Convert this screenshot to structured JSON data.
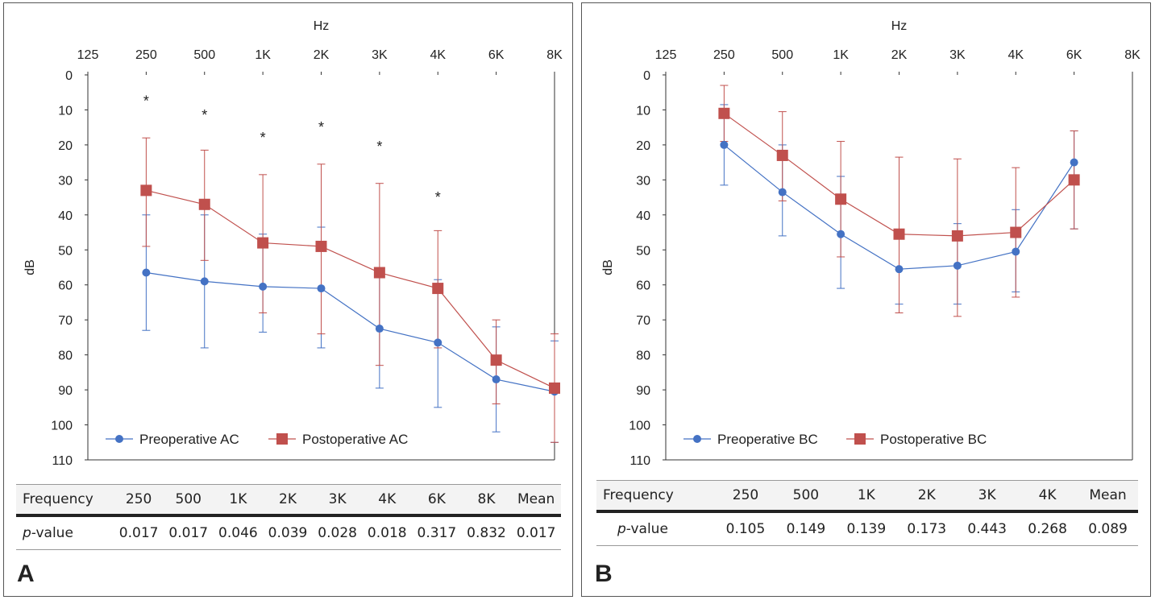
{
  "chart_data": [
    {
      "panel": "A",
      "type": "line",
      "title": "",
      "xlabel": "Hz",
      "ylabel": "dB",
      "x_ticks": [
        "125",
        "250",
        "500",
        "1K",
        "2K",
        "3K",
        "4K",
        "6K",
        "8K"
      ],
      "ylim": [
        0,
        110
      ],
      "y_ticks": [
        0,
        10,
        20,
        30,
        40,
        50,
        60,
        70,
        80,
        90,
        100,
        110
      ],
      "y_inverted": true,
      "x_positions": [
        "250",
        "500",
        "1K",
        "2K",
        "3K",
        "4K",
        "6K",
        "8K"
      ],
      "series": [
        {
          "name": "Preoperative AC",
          "color": "#4472c4",
          "marker": "circle",
          "values": [
            56.5,
            59,
            60.5,
            61,
            72.5,
            76.5,
            87,
            90.5
          ],
          "err_low": [
            40,
            40,
            45.5,
            43.5,
            56,
            58.5,
            72,
            76
          ],
          "err_high": [
            73,
            78,
            73.5,
            78,
            89.5,
            95,
            102,
            105
          ]
        },
        {
          "name": "Postoperative AC",
          "color": "#c0504d",
          "marker": "square",
          "values": [
            33,
            37,
            48,
            49,
            56.5,
            61,
            81.5,
            89.5
          ],
          "err_low": [
            18,
            21.5,
            28.5,
            25.5,
            31,
            44.5,
            70,
            74
          ],
          "err_high": [
            49,
            53,
            68,
            74,
            83,
            78,
            94,
            105
          ]
        }
      ],
      "annotations": [
        {
          "x": "250",
          "y": 7,
          "text": "*"
        },
        {
          "x": "500",
          "y": 11,
          "text": "*"
        },
        {
          "x": "1K",
          "y": 17.5,
          "text": "*"
        },
        {
          "x": "2K",
          "y": 14.5,
          "text": "*"
        },
        {
          "x": "3K",
          "y": 20,
          "text": "*"
        },
        {
          "x": "4K",
          "y": 34.5,
          "text": "*"
        }
      ],
      "legend": "bottom-left"
    },
    {
      "panel": "B",
      "type": "line",
      "title": "",
      "xlabel": "Hz",
      "ylabel": "dB",
      "x_ticks": [
        "125",
        "250",
        "500",
        "1K",
        "2K",
        "3K",
        "4K",
        "6K",
        "8K"
      ],
      "ylim": [
        0,
        110
      ],
      "y_ticks": [
        0,
        10,
        20,
        30,
        40,
        50,
        60,
        70,
        80,
        90,
        100,
        110
      ],
      "y_inverted": true,
      "x_positions": [
        "250",
        "500",
        "1K",
        "2K",
        "3K",
        "4K",
        "6K"
      ],
      "series": [
        {
          "name": "Preoperative BC",
          "color": "#4472c4",
          "marker": "circle",
          "values": [
            20,
            33.5,
            45.5,
            55.5,
            54.5,
            50.5,
            25
          ],
          "err_low": [
            8.5,
            20,
            29,
            45.5,
            42.5,
            38.5,
            16
          ],
          "err_high": [
            31.5,
            46,
            61,
            65.5,
            65.5,
            62,
            44
          ]
        },
        {
          "name": "Postoperative BC",
          "color": "#c0504d",
          "marker": "square",
          "values": [
            11,
            23,
            35.5,
            45.5,
            46,
            45,
            30
          ],
          "err_low": [
            3,
            10.5,
            19,
            23.5,
            24,
            26.5,
            16
          ],
          "err_high": [
            19,
            36,
            52,
            68,
            69,
            63.5,
            44
          ]
        }
      ],
      "legend": "bottom-left"
    }
  ],
  "tables": {
    "A": {
      "header": [
        "Frequency",
        "250",
        "500",
        "1K",
        "2K",
        "3K",
        "4K",
        "6K",
        "8K",
        "Mean"
      ],
      "row_label": "p",
      "row_label_suffix": "-value",
      "values": [
        "0.017",
        "0.017",
        "0.046",
        "0.039",
        "0.028",
        "0.018",
        "0.317",
        "0.832",
        "0.017"
      ]
    },
    "B": {
      "header": [
        "Frequency",
        "250",
        "500",
        "1K",
        "2K",
        "3K",
        "4K",
        "Mean"
      ],
      "row_label": "p",
      "row_label_suffix": "-value",
      "values": [
        "0.105",
        "0.149",
        "0.139",
        "0.173",
        "0.443",
        "0.268",
        "0.089"
      ]
    }
  },
  "panel_labels": {
    "A": "A",
    "B": "B"
  }
}
